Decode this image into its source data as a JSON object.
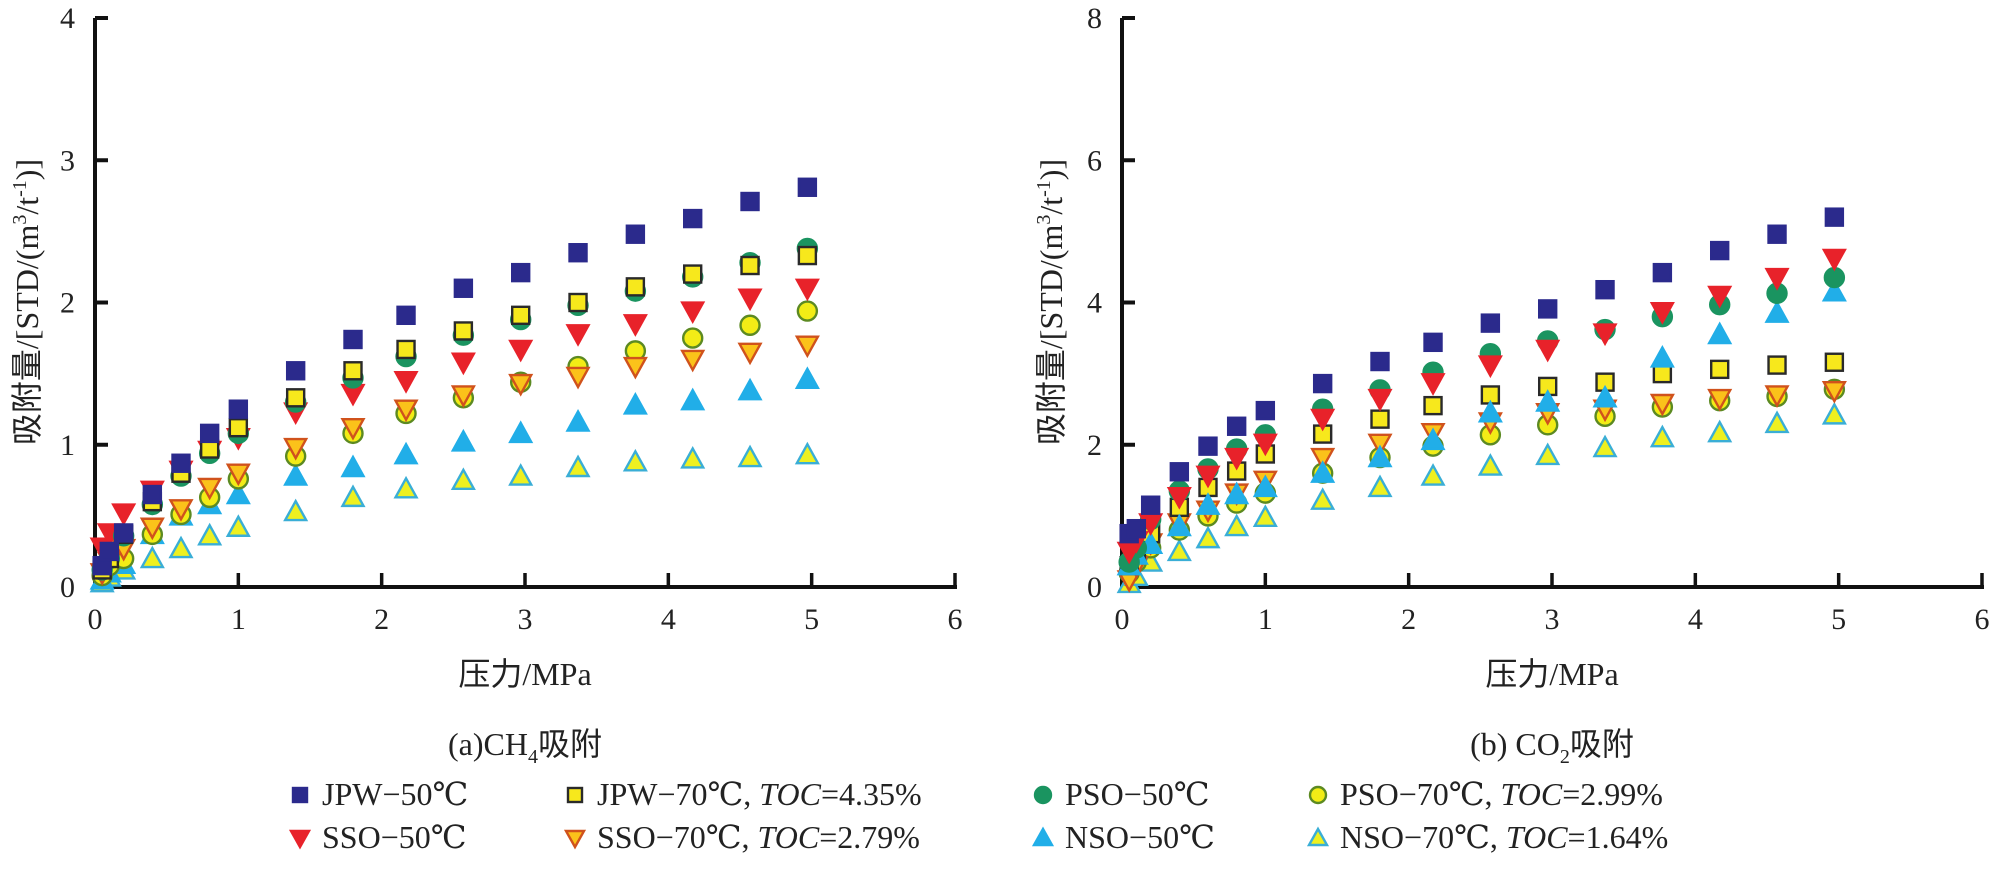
{
  "chart_data": [
    {
      "id": "a",
      "type": "scatter",
      "title": "(a)CH4吸附",
      "caption_prefix": "(a)CH",
      "caption_sub": "4",
      "caption_suffix": "吸附",
      "xlabel": "压力/MPa",
      "ylabel": "吸附量/[STD/(m³/t⁻¹)]",
      "xlim": [
        0,
        6
      ],
      "ylim": [
        0,
        4
      ],
      "xticks": [
        0,
        1,
        2,
        3,
        4,
        5,
        6
      ],
      "yticks": [
        0,
        1,
        2,
        3,
        4
      ],
      "grid": false,
      "x": [
        0.05,
        0.1,
        0.2,
        0.4,
        0.6,
        0.8,
        1.0,
        1.4,
        1.8,
        2.17,
        2.57,
        2.97,
        3.37,
        3.77,
        4.17,
        4.57,
        4.97
      ],
      "series": [
        {
          "key": "nso70",
          "name": "NSO-70℃, TOC=1.64%",
          "values": [
            0.03,
            0.07,
            0.12,
            0.2,
            0.27,
            0.36,
            0.42,
            0.53,
            0.63,
            0.69,
            0.75,
            0.78,
            0.84,
            0.88,
            0.9,
            0.91,
            0.93
          ]
        },
        {
          "key": "nso50",
          "name": "NSO-50℃",
          "values": [
            0.05,
            0.1,
            0.16,
            0.37,
            0.5,
            0.58,
            0.65,
            0.78,
            0.84,
            0.93,
            1.02,
            1.08,
            1.16,
            1.28,
            1.31,
            1.38,
            1.46
          ]
        },
        {
          "key": "pso70",
          "name": "PSO-70℃, TOC=2.99%",
          "values": [
            0.08,
            0.15,
            0.2,
            0.37,
            0.51,
            0.63,
            0.76,
            0.92,
            1.08,
            1.22,
            1.33,
            1.44,
            1.55,
            1.66,
            1.75,
            1.84,
            1.94
          ]
        },
        {
          "key": "sso70",
          "name": "SSO-70℃, TOC=2.79%",
          "values": [
            0.1,
            0.18,
            0.27,
            0.42,
            0.55,
            0.7,
            0.8,
            0.98,
            1.12,
            1.25,
            1.35,
            1.43,
            1.48,
            1.55,
            1.6,
            1.65,
            1.7
          ]
        },
        {
          "key": "sso50",
          "name": "SSO-50℃",
          "values": [
            0.28,
            0.38,
            0.52,
            0.68,
            0.82,
            0.96,
            1.05,
            1.23,
            1.36,
            1.45,
            1.58,
            1.67,
            1.78,
            1.85,
            1.94,
            2.03,
            2.1
          ]
        },
        {
          "key": "pso50",
          "name": "PSO-50℃",
          "values": [
            0.12,
            0.2,
            0.36,
            0.58,
            0.78,
            0.94,
            1.08,
            1.3,
            1.47,
            1.62,
            1.77,
            1.88,
            1.98,
            2.08,
            2.18,
            2.28,
            2.38
          ]
        },
        {
          "key": "jpw70",
          "name": "JPW-70℃, TOC=4.35%",
          "values": [
            0.12,
            0.2,
            0.37,
            0.6,
            0.8,
            0.97,
            1.12,
            1.33,
            1.52,
            1.67,
            1.8,
            1.91,
            2.0,
            2.11,
            2.2,
            2.26,
            2.33
          ]
        },
        {
          "key": "jpw50",
          "name": "JPW-50℃",
          "values": [
            0.15,
            0.25,
            0.38,
            0.65,
            0.87,
            1.08,
            1.25,
            1.52,
            1.74,
            1.91,
            2.1,
            2.21,
            2.35,
            2.48,
            2.59,
            2.71,
            2.81
          ]
        }
      ]
    },
    {
      "id": "b",
      "type": "scatter",
      "title": "(b) CO2吸附",
      "caption_prefix": "(b) CO",
      "caption_sub": "2",
      "caption_suffix": "吸附",
      "xlabel": "压力/MPa",
      "ylabel": "吸附量/[STD/(m³/t⁻¹)]",
      "xlim": [
        0,
        6
      ],
      "ylim": [
        0,
        8
      ],
      "xticks": [
        0,
        1,
        2,
        3,
        4,
        5,
        6
      ],
      "yticks": [
        0,
        2,
        4,
        6,
        8
      ],
      "grid": false,
      "x": [
        0.05,
        0.1,
        0.2,
        0.4,
        0.6,
        0.8,
        1.0,
        1.4,
        1.8,
        2.17,
        2.57,
        2.97,
        3.37,
        3.77,
        4.17,
        4.57,
        4.97
      ],
      "series": [
        {
          "key": "nso70",
          "name": "NSO-70℃, TOC=1.64%",
          "values": [
            0.05,
            0.15,
            0.35,
            0.5,
            0.68,
            0.85,
            0.98,
            1.22,
            1.4,
            1.56,
            1.7,
            1.85,
            1.96,
            2.1,
            2.17,
            2.3,
            2.42
          ]
        },
        {
          "key": "pso70",
          "name": "PSO-70℃, TOC=2.99%",
          "values": [
            0.2,
            0.35,
            0.55,
            0.8,
            1.0,
            1.18,
            1.32,
            1.6,
            1.82,
            1.98,
            2.14,
            2.28,
            2.4,
            2.53,
            2.62,
            2.68,
            2.78
          ]
        },
        {
          "key": "sso70",
          "name": "SSO-70℃, TOC=2.79%",
          "values": [
            0.1,
            0.3,
            0.62,
            0.9,
            1.08,
            1.32,
            1.5,
            1.82,
            2.02,
            2.17,
            2.32,
            2.45,
            2.5,
            2.58,
            2.65,
            2.7,
            2.76
          ]
        },
        {
          "key": "jpw70",
          "name": "JPW-70℃, TOC=4.35%",
          "values": [
            0.3,
            0.5,
            0.75,
            1.12,
            1.4,
            1.63,
            1.87,
            2.15,
            2.36,
            2.55,
            2.7,
            2.82,
            2.88,
            3.0,
            3.06,
            3.12,
            3.16
          ]
        },
        {
          "key": "nso50",
          "name": "NSO-50℃",
          "values": [
            0.3,
            0.45,
            0.6,
            0.85,
            1.15,
            1.3,
            1.4,
            1.6,
            1.82,
            2.06,
            2.45,
            2.6,
            2.66,
            3.22,
            3.55,
            3.85,
            4.15
          ]
        },
        {
          "key": "pso50",
          "name": "PSO-50℃",
          "values": [
            0.35,
            0.55,
            0.95,
            1.35,
            1.66,
            1.94,
            2.14,
            2.5,
            2.77,
            3.02,
            3.28,
            3.46,
            3.62,
            3.8,
            3.97,
            4.13,
            4.35
          ]
        },
        {
          "key": "sso50",
          "name": "SSO-50℃",
          "values": [
            0.5,
            0.65,
            0.9,
            1.27,
            1.57,
            1.82,
            2.02,
            2.37,
            2.65,
            2.87,
            3.12,
            3.34,
            3.57,
            3.87,
            4.1,
            4.35,
            4.62
          ]
        },
        {
          "key": "jpw50",
          "name": "JPW-50℃",
          "values": [
            0.75,
            0.82,
            1.15,
            1.62,
            1.98,
            2.26,
            2.48,
            2.86,
            3.17,
            3.44,
            3.71,
            3.91,
            4.18,
            4.42,
            4.73,
            4.96,
            5.2
          ]
        }
      ]
    }
  ],
  "legend": {
    "placement": "bottom",
    "items": [
      {
        "key": "jpw50",
        "label": "JPW−50℃",
        "toc": ""
      },
      {
        "key": "jpw70",
        "label": "JPW−70℃, ",
        "toc": "4.35%"
      },
      {
        "key": "pso50",
        "label": "PSO−50℃",
        "toc": ""
      },
      {
        "key": "pso70",
        "label": "PSO−70℃, ",
        "toc": "2.99%"
      },
      {
        "key": "sso50",
        "label": "SSO−50℃",
        "toc": ""
      },
      {
        "key": "sso70",
        "label": "SSO−70℃, ",
        "toc": "2.79%"
      },
      {
        "key": "nso50",
        "label": "NSO−50℃",
        "toc": ""
      },
      {
        "key": "nso70",
        "label": "NSO−70℃, ",
        "toc": "1.64%"
      }
    ],
    "toc_label": "TOC",
    "toc_eq": "="
  },
  "styles": {
    "jpw50": {
      "shape": "square",
      "fill": "#2b2a8c",
      "stroke": "#2b2a8c"
    },
    "jpw70": {
      "shape": "square",
      "fill": "#f7e81c",
      "stroke": "#2a2a2a"
    },
    "pso50": {
      "shape": "circle",
      "fill": "#1a9460",
      "stroke": "#1a9460"
    },
    "pso70": {
      "shape": "circle",
      "fill": "#f2ec16",
      "stroke": "#5c8a22"
    },
    "sso50": {
      "shape": "down-triangle",
      "fill": "#e8222a",
      "stroke": "#e8222a"
    },
    "sso70": {
      "shape": "down-triangle",
      "fill": "#fbc21a",
      "stroke": "#d0521c"
    },
    "nso50": {
      "shape": "up-triangle",
      "fill": "#21aee8",
      "stroke": "#21aee8"
    },
    "nso70": {
      "shape": "up-triangle",
      "fill": "#eef020",
      "stroke": "#3aaed6"
    }
  },
  "ylabel_parts": {
    "main": "吸附量/[STD/(m",
    "sup1": "3",
    "mid": "/t",
    "sup2": "-1",
    "end": ")]"
  }
}
